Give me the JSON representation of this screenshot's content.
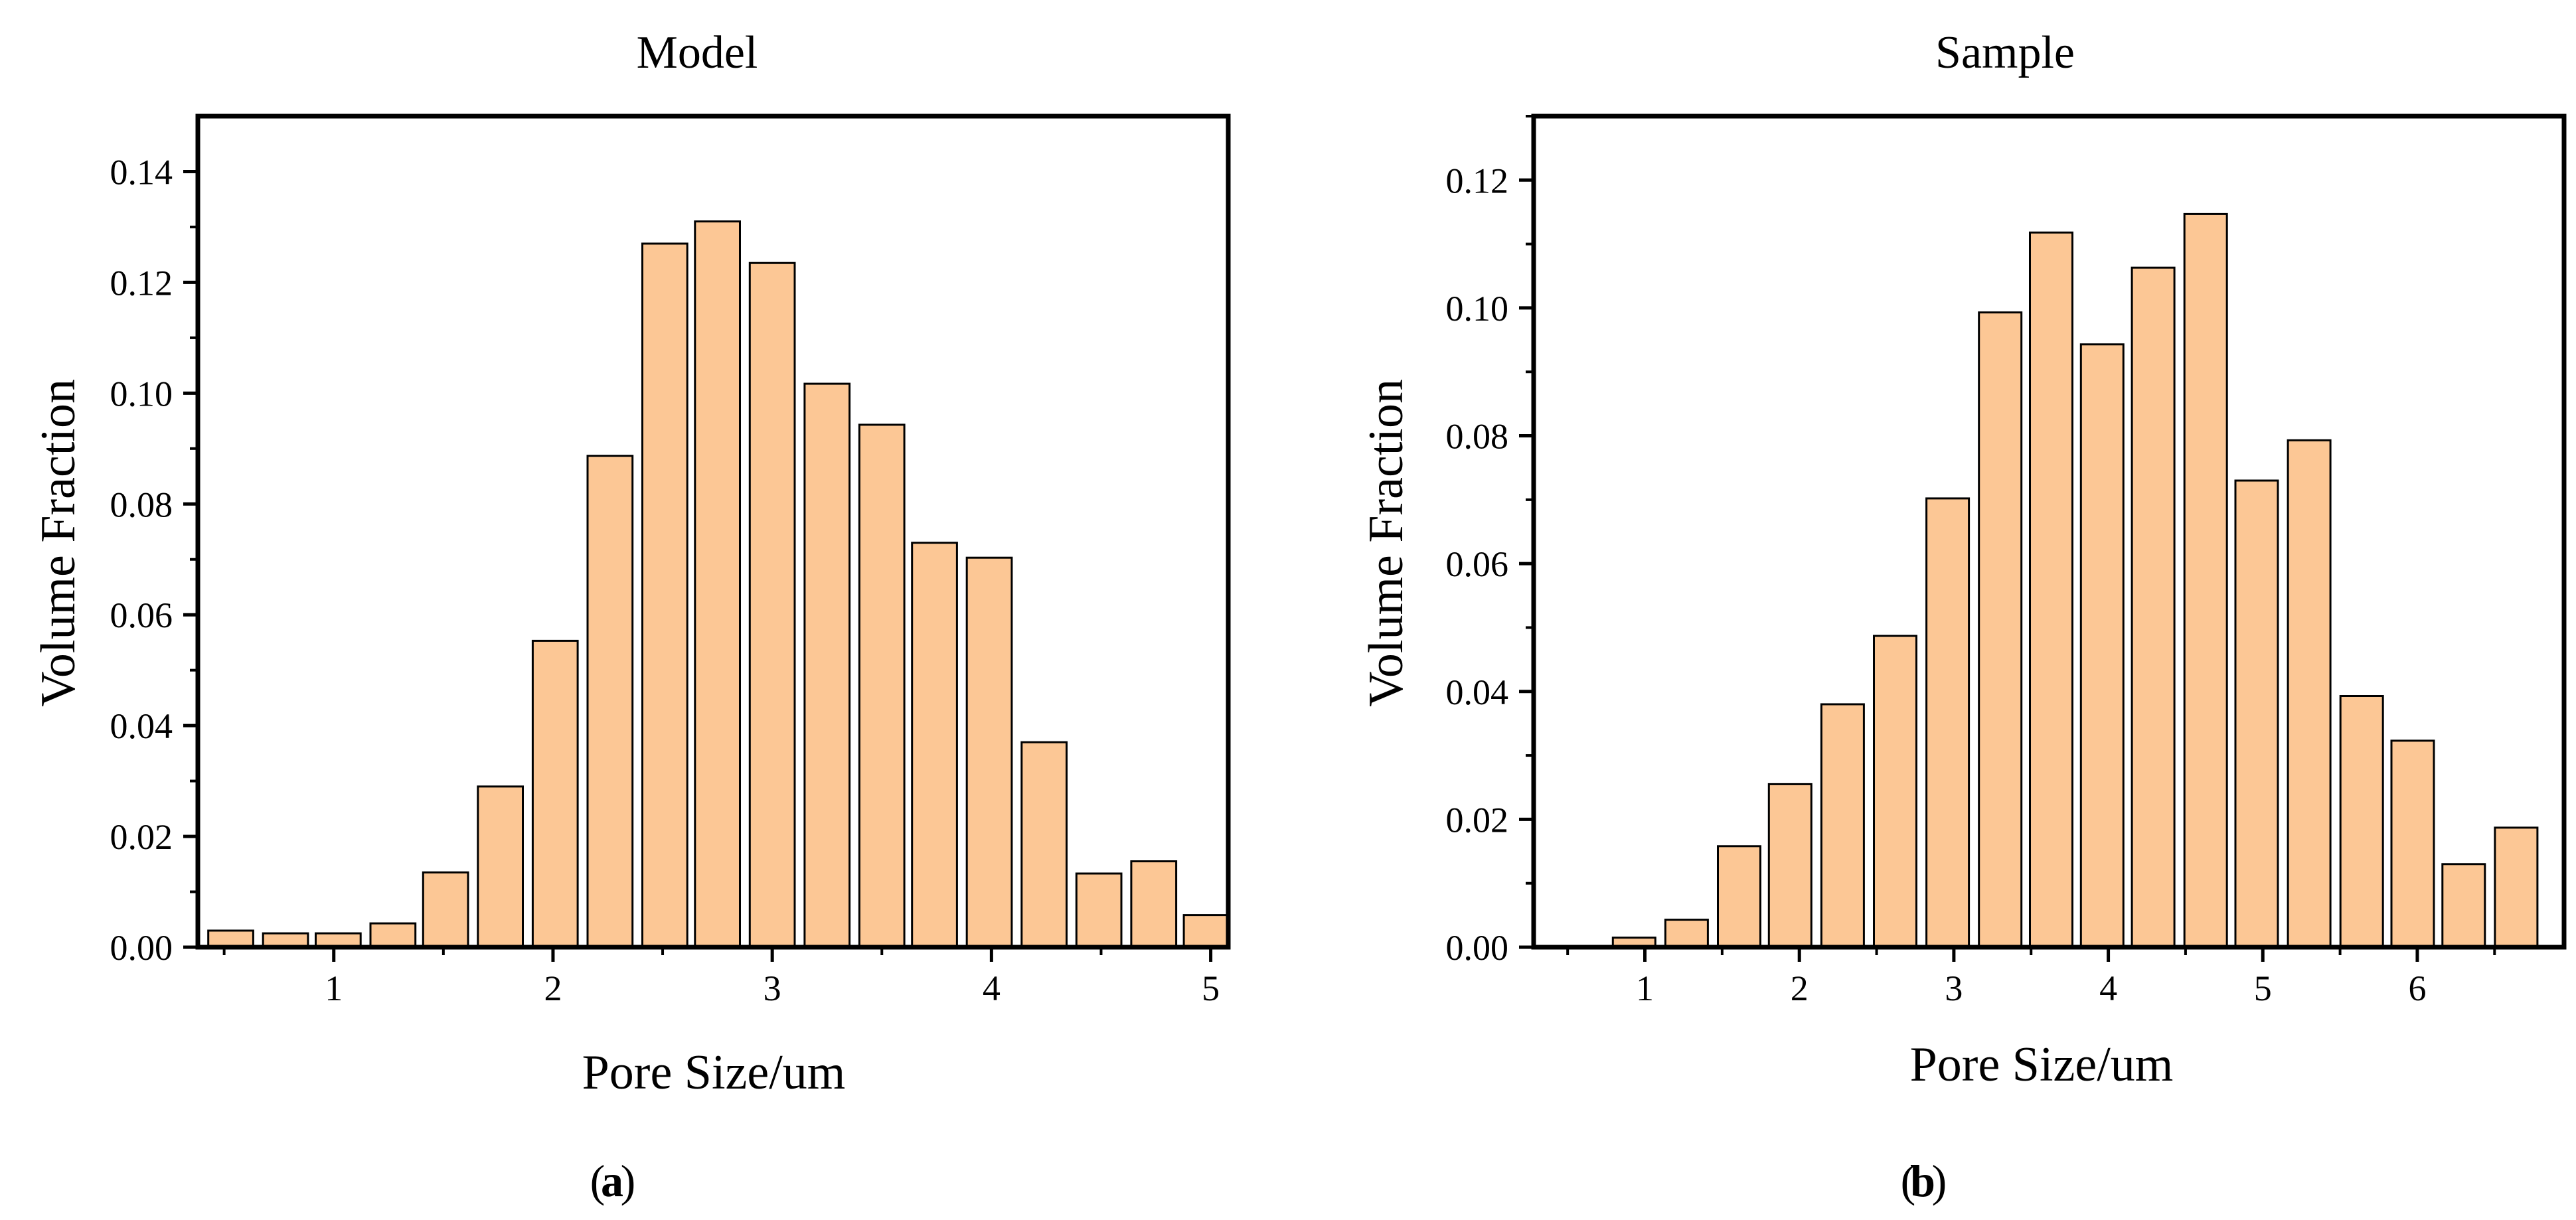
{
  "bar_color": "#FCC795",
  "chart_data": [
    {
      "type": "bar",
      "title": "Model",
      "panel_label": "a",
      "xlabel": "Pore Size/um",
      "ylabel": "Volume Fraction",
      "xlim": [
        0.38,
        5.08
      ],
      "ylim": [
        0,
        0.15
      ],
      "bar_width": 0.205,
      "xticks": [
        1,
        2,
        3,
        4,
        5
      ],
      "xtick_labels": [
        "1",
        "2",
        "3",
        "4",
        "5"
      ],
      "yticks": [
        0,
        0.02,
        0.04,
        0.06,
        0.08,
        0.1,
        0.12,
        0.14
      ],
      "ytick_labels": [
        "0.00",
        "0.02",
        "0.04",
        "0.06",
        "0.08",
        "0.10",
        "0.12",
        "0.14"
      ],
      "x": [
        0.53,
        0.78,
        1.02,
        1.27,
        1.51,
        1.76,
        2.01,
        2.26,
        2.51,
        2.75,
        3.0,
        3.25,
        3.5,
        3.74,
        3.99,
        4.24,
        4.49,
        4.74,
        4.98
      ],
      "values": [
        0.003,
        0.0025,
        0.0025,
        0.0043,
        0.0135,
        0.029,
        0.0553,
        0.0887,
        0.127,
        0.131,
        0.1235,
        0.1017,
        0.0943,
        0.073,
        0.0703,
        0.037,
        0.0133,
        0.0155,
        0.0058
      ]
    },
    {
      "type": "bar",
      "title": "Sample",
      "panel_label": "b",
      "xlabel": "Pore Size/um",
      "ylabel": "Volume Fraction",
      "xlim": [
        0.28,
        6.95
      ],
      "ylim": [
        0,
        0.13
      ],
      "bar_width": 0.275,
      "xticks": [
        1,
        2,
        3,
        4,
        5,
        6
      ],
      "xtick_labels": [
        "1",
        "2",
        "3",
        "4",
        "5",
        "6"
      ],
      "yticks": [
        0,
        0.02,
        0.04,
        0.06,
        0.08,
        0.1,
        0.12
      ],
      "ytick_labels": [
        "0.00",
        "0.02",
        "0.04",
        "0.06",
        "0.08",
        "0.10",
        "0.12"
      ],
      "x": [
        0.93,
        1.27,
        1.61,
        1.94,
        2.28,
        2.62,
        2.96,
        3.3,
        3.63,
        3.96,
        4.29,
        4.63,
        4.96,
        5.3,
        5.64,
        5.97,
        6.3,
        6.64
      ],
      "values": [
        0.0015,
        0.0043,
        0.0158,
        0.0255,
        0.038,
        0.0487,
        0.0702,
        0.0993,
        0.1118,
        0.0943,
        0.1063,
        0.1147,
        0.073,
        0.0793,
        0.0393,
        0.0323,
        0.013,
        0.0187
      ]
    }
  ]
}
